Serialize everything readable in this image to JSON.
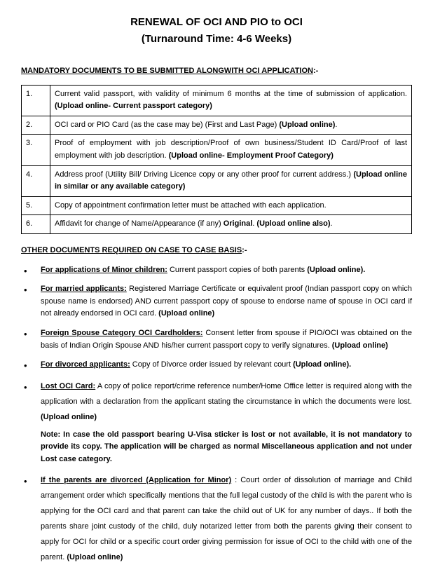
{
  "title": {
    "line1": "RENEWAL OF OCI AND PIO to OCI",
    "line2": "(Turnaround Time: 4-6 Weeks)"
  },
  "section1": {
    "heading": "MANDATORY DOCUMENTS TO BE SUBMITTED ALONGWITH OCI APPLICATION",
    "suffix": ":-"
  },
  "table": {
    "rows": [
      {
        "n": "1.",
        "text": "Current valid passport, with validity of minimum 6 months at the time of submission of application. ",
        "bold": "(Upload online- Current passport category)"
      },
      {
        "n": "2.",
        "text": "OCI card or PIO Card (as the case may be) (First and Last Page) ",
        "bold": "(Upload online)",
        "tail": "."
      },
      {
        "n": "3.",
        "text": "Proof of employment with job description/Proof of own business/Student ID Card/Proof of last employment with job description. ",
        "bold": "(Upload online- Employment Proof Category)"
      },
      {
        "n": "4.",
        "text": "Address proof (Utility Bill/ Driving Licence copy or any other proof for current address.) ",
        "bold": "(Upload online in similar or any available category)"
      },
      {
        "n": "5.",
        "text": "Copy of appointment confirmation letter must be attached with each application.",
        "bold": ""
      },
      {
        "n": "6.",
        "text": "Affidavit for change of Name/Appearance (if any) ",
        "bold": "Original",
        "tail": ". ",
        "bold2": "(Upload online also)",
        "tail2": "."
      }
    ]
  },
  "section2": {
    "heading": "OTHER DOCUMENTS REQUIRED ON CASE TO CASE BASIS",
    "suffix": ":-"
  },
  "cases": [
    {
      "label": "For applications of Minor children:",
      "text": " Current passport copies of both parents ",
      "bold": "(Upload online).",
      "spaced": false
    },
    {
      "label": "For married applicants:",
      "text": " Registered Marriage Certificate or equivalent proof (Indian passport copy on which spouse name is endorsed) AND current passport copy of spouse to endorse name of spouse in OCI card if not already endorsed in OCI card. ",
      "bold": "(Upload online)",
      "spaced": false
    },
    {
      "label": "Foreign Spouse Category OCI Cardholders:",
      "text": " Consent letter from spouse if PIO/OCI was obtained on the basis of Indian Origin Spouse AND his/her current passport copy to verify signatures. ",
      "bold": "(Upload online)",
      "spaced": false
    },
    {
      "label": "For divorced applicants:",
      "text": " Copy of Divorce order issued by relevant court ",
      "bold": "(Upload online).",
      "spaced": false
    },
    {
      "label": "Lost OCI Card:",
      "text": " A copy of police report/crime reference number/Home Office letter is required along with the application with a declaration from the applicant stating the circumstance in which the documents were lost. ",
      "bold": "(Upload online)",
      "note": "Note: In case the old passport bearing U-Visa sticker is lost or not available, it is not mandatory to provide its copy. The application will be charged as normal Miscellaneous application and not under Lost case category.",
      "spaced": true
    },
    {
      "label": "If the parents are divorced (Application for Minor)",
      "text": " : Court order of dissolution of marriage and Child arrangement order which specifically mentions that the full legal custody of the child is with the parent who is applying for the OCI card and that parent can take the child out of UK for any number of days.. If both the parents share joint custody of the child, duly notarized letter from both the parents giving their consent to apply for OCI for child or a specific court order giving permission for issue of OCI to the child with one of the parent. ",
      "bold": "(Upload online)",
      "spaced": true
    }
  ]
}
